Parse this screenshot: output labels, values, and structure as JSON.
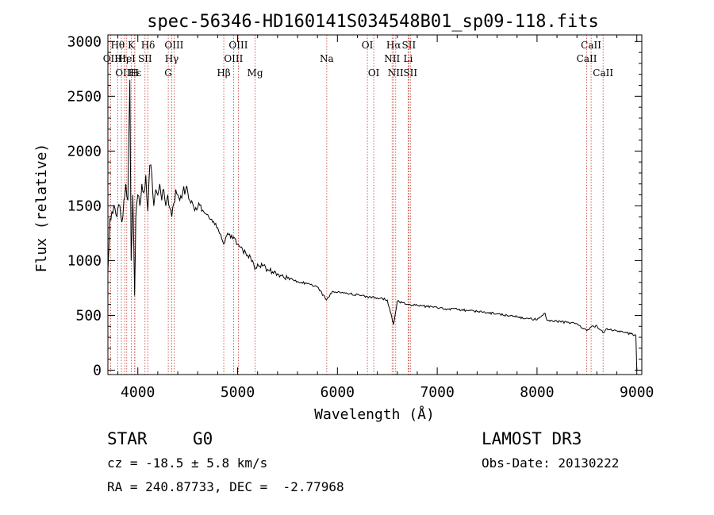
{
  "chart_data": {
    "type": "line",
    "title": "spec-56346-HD160141S034548B01_sp09-118.fits",
    "xlabel": "Wavelength (Å)",
    "ylabel": "Flux (relative)",
    "xlim": [
      3700,
      9050
    ],
    "ylim": [
      -40,
      3060
    ],
    "xticks": [
      4000,
      5000,
      6000,
      7000,
      8000,
      9000
    ],
    "yticks": [
      0,
      500,
      1000,
      1500,
      2000,
      2500,
      3000
    ],
    "series": [
      {
        "name": "spectrum",
        "color": "#000000",
        "x": [
          3700,
          3720,
          3740,
          3760,
          3780,
          3800,
          3820,
          3840,
          3860,
          3880,
          3900,
          3920,
          3933,
          3950,
          3968,
          3980,
          4000,
          4020,
          4040,
          4060,
          4080,
          4101,
          4120,
          4140,
          4160,
          4180,
          4200,
          4220,
          4240,
          4260,
          4280,
          4300,
          4320,
          4340,
          4360,
          4380,
          4400,
          4420,
          4450,
          4480,
          4500,
          4520,
          4550,
          4600,
          4650,
          4700,
          4750,
          4800,
          4861,
          4900,
          4950,
          5000,
          5050,
          5100,
          5150,
          5172,
          5200,
          5250,
          5300,
          5400,
          5500,
          5600,
          5700,
          5800,
          5890,
          5950,
          6000,
          6100,
          6200,
          6300,
          6400,
          6500,
          6563,
          6600,
          6650,
          6700,
          6800,
          6900,
          7000,
          7100,
          7200,
          7300,
          7400,
          7500,
          7600,
          7700,
          7800,
          7900,
          8000,
          8080,
          8100,
          8200,
          8300,
          8400,
          8498,
          8542,
          8600,
          8662,
          8700,
          8800,
          8900,
          8990,
          9000
        ],
        "y": [
          900,
          1380,
          1450,
          1500,
          1420,
          1480,
          1500,
          1350,
          1550,
          1700,
          1550,
          2650,
          1000,
          1600,
          680,
          1400,
          1600,
          1500,
          1700,
          1620,
          1780,
          1450,
          1870,
          1800,
          1500,
          1650,
          1600,
          1700,
          1550,
          1650,
          1500,
          1600,
          1480,
          1400,
          1520,
          1650,
          1600,
          1550,
          1620,
          1650,
          1630,
          1550,
          1520,
          1480,
          1460,
          1420,
          1350,
          1300,
          1150,
          1250,
          1200,
          1150,
          1100,
          1050,
          1000,
          920,
          970,
          950,
          920,
          880,
          840,
          810,
          790,
          760,
          640,
          720,
          710,
          700,
          690,
          670,
          660,
          640,
          420,
          630,
          615,
          600,
          590,
          580,
          570,
          560,
          555,
          545,
          535,
          525,
          515,
          500,
          485,
          475,
          460,
          520,
          455,
          445,
          435,
          425,
          360,
          395,
          405,
          340,
          380,
          360,
          340,
          320,
          0
        ]
      }
    ],
    "line_markers": [
      {
        "label": "Hθ",
        "wavelength": 3798,
        "row": 1
      },
      {
        "label": "OII",
        "wavelength": 3727,
        "row": 2
      },
      {
        "label": "OIII",
        "wavelength": 3869,
        "row": 3
      },
      {
        "label": "Hη",
        "wavelength": 3835,
        "row": 2
      },
      {
        "label": "K",
        "wavelength": 3934,
        "row": 1
      },
      {
        "label": "HeI",
        "wavelength": 3889,
        "row": 2
      },
      {
        "label": "Hε",
        "wavelength": 3970,
        "row": 3
      },
      {
        "label": "H",
        "wavelength": 3968,
        "row": 3
      },
      {
        "label": "SII",
        "wavelength": 4072,
        "row": 2
      },
      {
        "label": "Hδ",
        "wavelength": 4102,
        "row": 1
      },
      {
        "label": "OIII",
        "wavelength": 4363,
        "row": 1
      },
      {
        "label": "Hγ",
        "wavelength": 4340,
        "row": 2
      },
      {
        "label": "G",
        "wavelength": 4305,
        "row": 3
      },
      {
        "label": "Hβ",
        "wavelength": 4861,
        "row": 3
      },
      {
        "label": "OIII",
        "wavelength": 5007,
        "row": 1
      },
      {
        "label": "OIII",
        "wavelength": 4959,
        "row": 2
      },
      {
        "label": "Mg",
        "wavelength": 5175,
        "row": 3
      },
      {
        "label": "Na",
        "wavelength": 5893,
        "row": 2
      },
      {
        "label": "OI",
        "wavelength": 6300,
        "row": 1
      },
      {
        "label": "OI",
        "wavelength": 6364,
        "row": 3
      },
      {
        "label": "Hα",
        "wavelength": 6563,
        "row": 1
      },
      {
        "label": "NII",
        "wavelength": 6548,
        "row": 2
      },
      {
        "label": "NII",
        "wavelength": 6584,
        "row": 3
      },
      {
        "label": "SII",
        "wavelength": 6716,
        "row": 1
      },
      {
        "label": "Li",
        "wavelength": 6708,
        "row": 2
      },
      {
        "label": "SII",
        "wavelength": 6731,
        "row": 3
      },
      {
        "label": "CaII",
        "wavelength": 8542,
        "row": 1
      },
      {
        "label": "CaII",
        "wavelength": 8498,
        "row": 2
      },
      {
        "label": "CaII",
        "wavelength": 8662,
        "row": 3
      }
    ]
  },
  "info": {
    "object_class": "STAR",
    "subclass": "G0",
    "survey": "LAMOST DR3",
    "velocity": "cz = -18.5 ± 5.8 km/s",
    "obs_date": "Obs-Date: 20130222",
    "coords": "RA = 240.87733, DEC =  -2.77968"
  }
}
